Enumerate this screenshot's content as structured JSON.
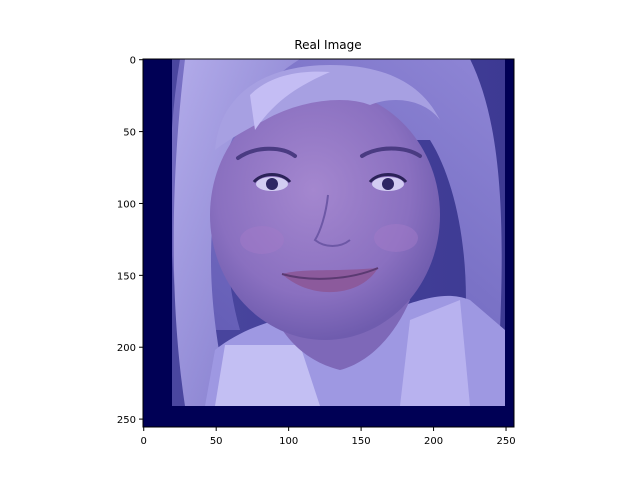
{
  "chart_data": {
    "type": "image",
    "title": "Real Image",
    "image_width": 256,
    "image_height": 256,
    "xlim": [
      -0.5,
      255.5
    ],
    "ylim": [
      255.5,
      -0.5
    ],
    "x_ticks": [
      0,
      50,
      100,
      150,
      200,
      250
    ],
    "y_ticks": [
      0,
      50,
      100,
      150,
      200,
      250
    ],
    "content": "photograph of a smiling blonde woman's face with a blue-violet color tint",
    "colors": {
      "border": "#000055",
      "tint": "#6a64c4",
      "skin": "#8c74c2",
      "hair": "#9a93d6",
      "background": "#4f4aa8"
    }
  }
}
